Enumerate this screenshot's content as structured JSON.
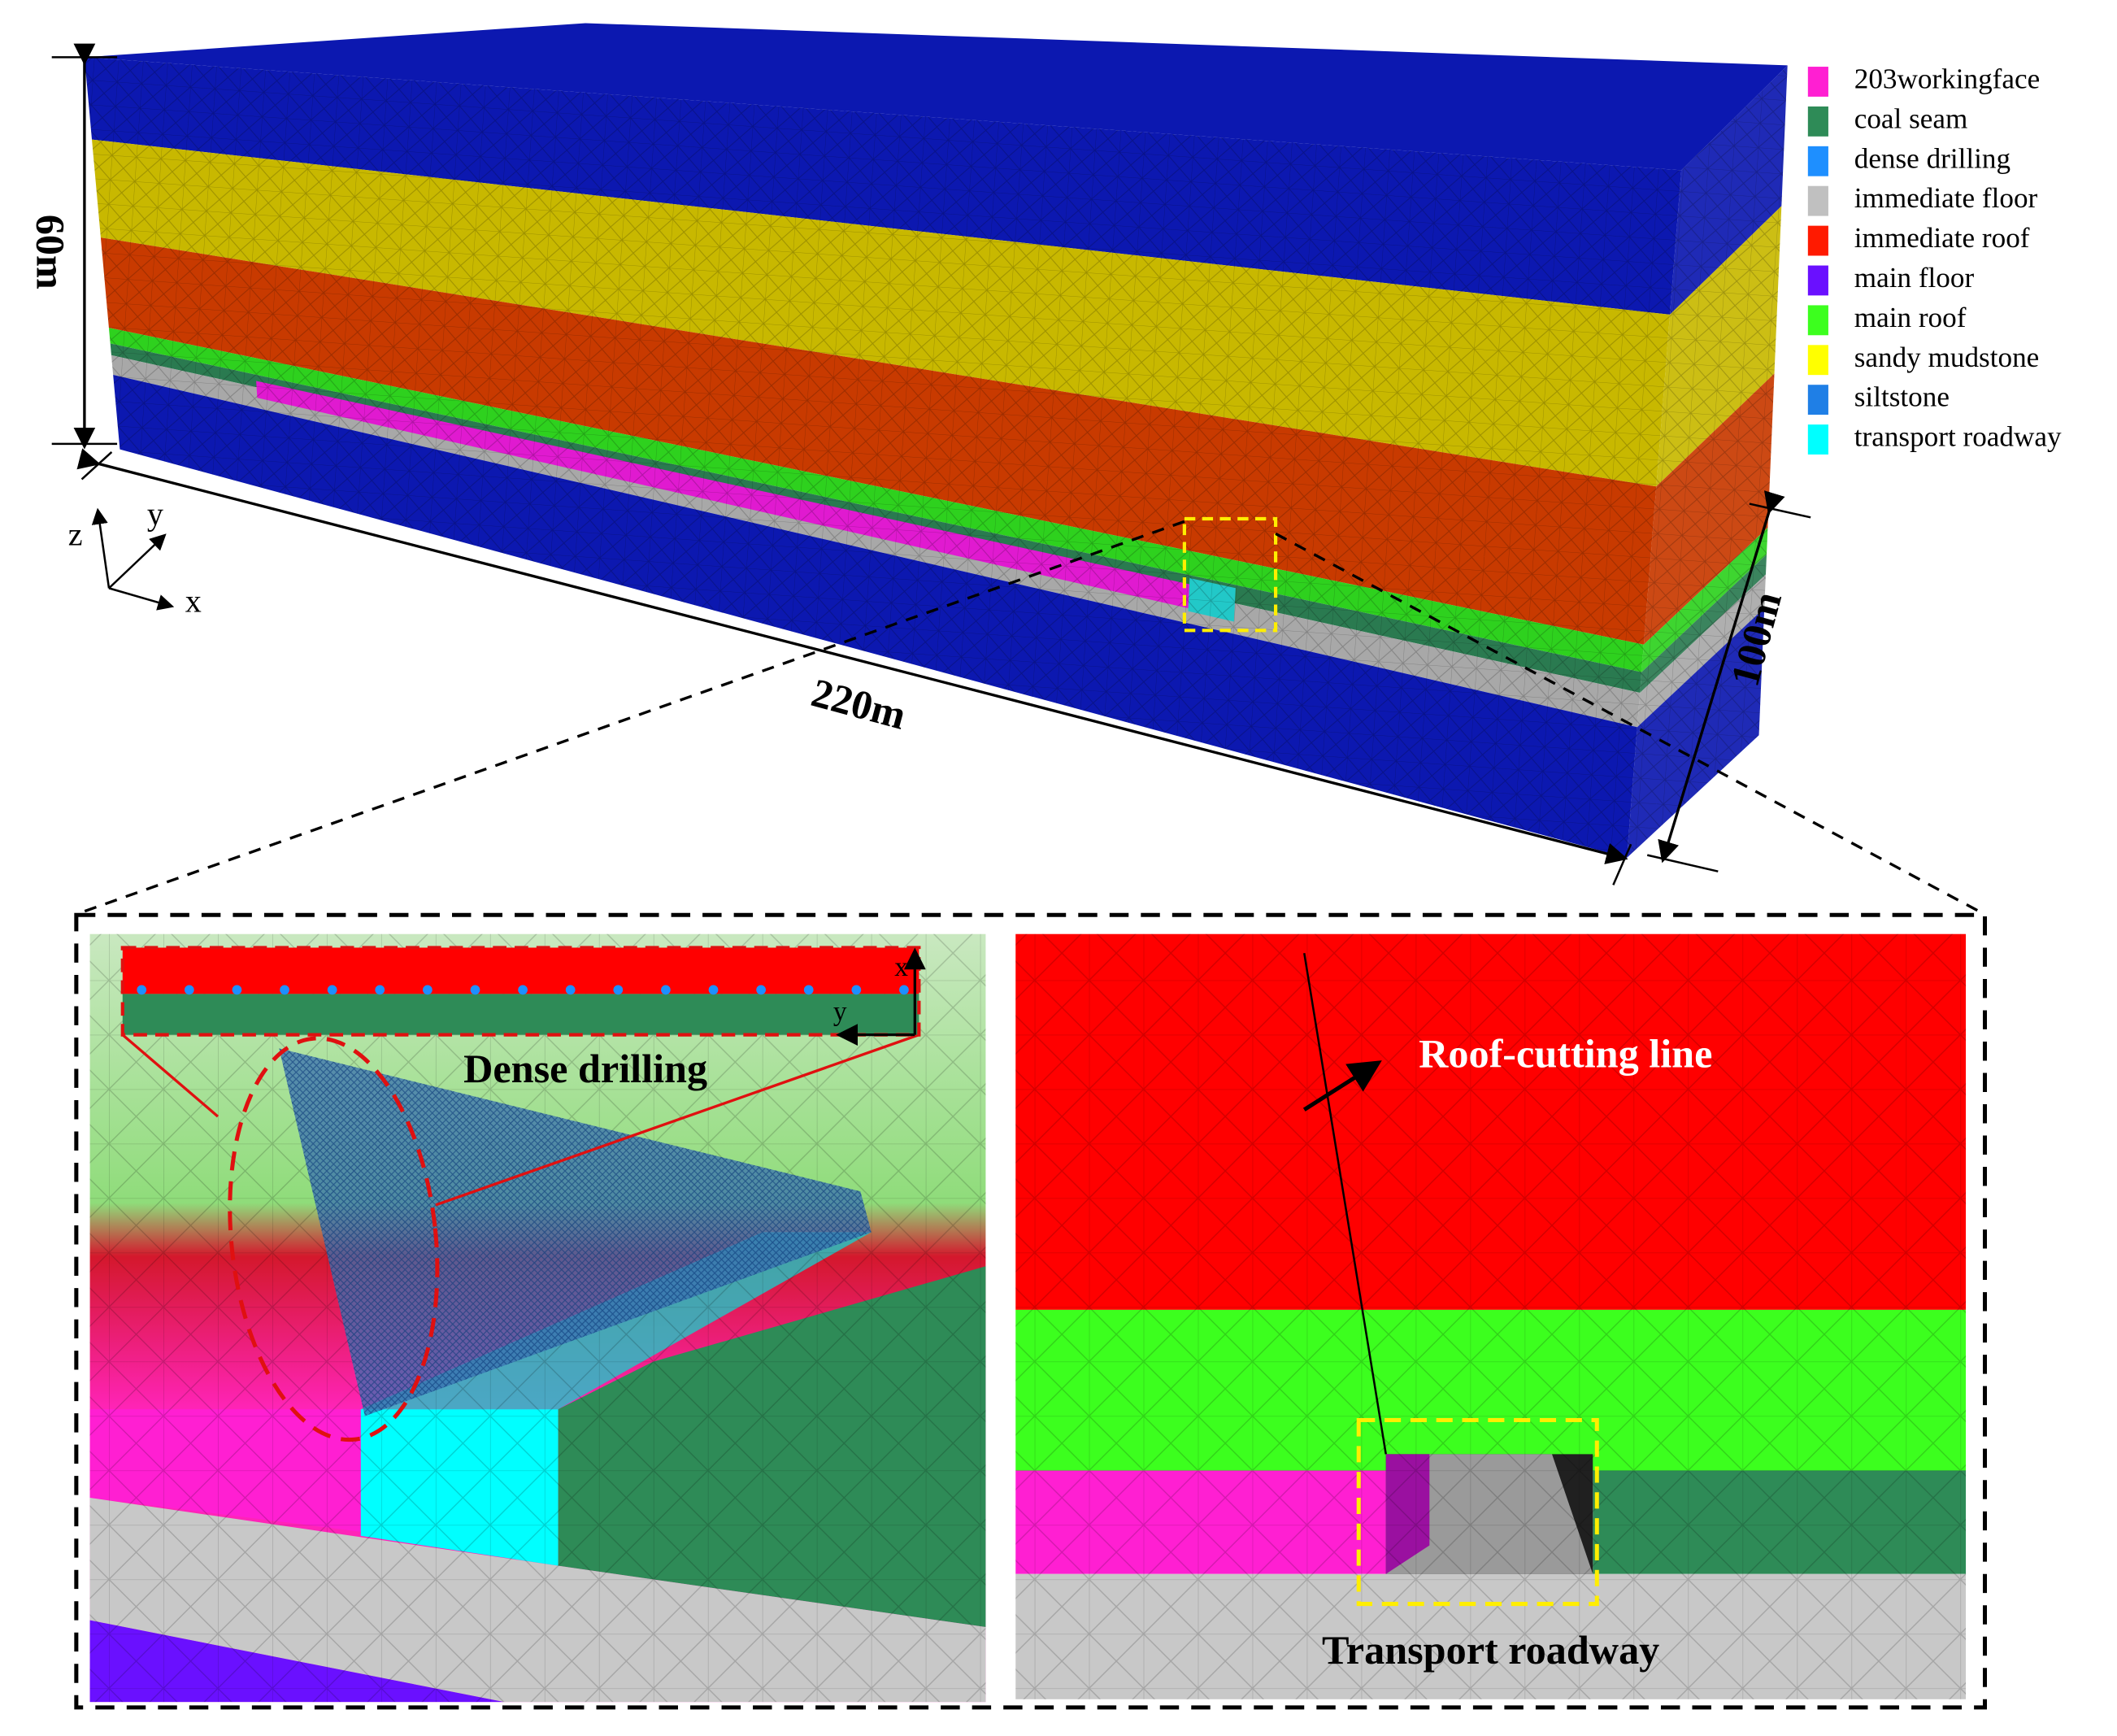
{
  "legend": [
    {
      "label": "203workingface",
      "color": "#ff1fd2"
    },
    {
      "label": "coal seam",
      "color": "#2e8b57"
    },
    {
      "label": "dense drilling",
      "color": "#1e8fff"
    },
    {
      "label": "immediate floor",
      "color": "#c0c0c0"
    },
    {
      "label": "immediate roof",
      "color": "#ff1a00"
    },
    {
      "label": "main floor",
      "color": "#6a10ff"
    },
    {
      "label": "main roof",
      "color": "#3cff1e"
    },
    {
      "label": "sandy mudstone",
      "color": "#ffff00"
    },
    {
      "label": "siltstone",
      "color": "#1f7fe6"
    },
    {
      "label": "transport roadway",
      "color": "#00ffff"
    }
  ],
  "dimensions": {
    "height": "60m",
    "length": "220m",
    "width": "100m"
  },
  "axes": {
    "z": "z",
    "y": "y",
    "x": "x"
  },
  "inset_axes": {
    "x": "x",
    "y": "y"
  },
  "annotations": {
    "dense_drilling": "Dense drilling",
    "roof_cutting_line": "Roof-cutting line",
    "transport_roadway": "Transport roadway"
  }
}
